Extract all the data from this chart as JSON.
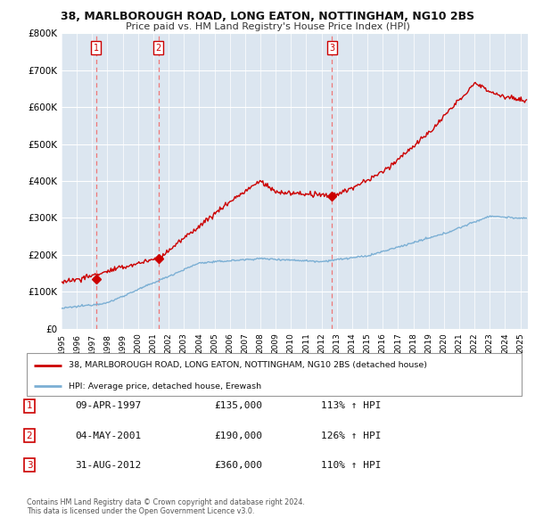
{
  "title": "38, MARLBOROUGH ROAD, LONG EATON, NOTTINGHAM, NG10 2BS",
  "subtitle": "Price paid vs. HM Land Registry's House Price Index (HPI)",
  "legend_line1": "38, MARLBOROUGH ROAD, LONG EATON, NOTTINGHAM, NG10 2BS (detached house)",
  "legend_line2": "HPI: Average price, detached house, Erewash",
  "footer1": "Contains HM Land Registry data © Crown copyright and database right 2024.",
  "footer2": "This data is licensed under the Open Government Licence v3.0.",
  "sales": [
    {
      "label": "1",
      "date": "09-APR-1997",
      "price": 135000,
      "year": 1997.27
    },
    {
      "label": "2",
      "date": "04-MAY-2001",
      "price": 190000,
      "year": 2001.34
    },
    {
      "label": "3",
      "date": "31-AUG-2012",
      "price": 360000,
      "year": 2012.67
    }
  ],
  "sale_table": [
    {
      "num": "1",
      "date": "09-APR-1997",
      "price": "£135,000",
      "pct": "113% ↑ HPI"
    },
    {
      "num": "2",
      "date": "04-MAY-2001",
      "price": "£190,000",
      "pct": "126% ↑ HPI"
    },
    {
      "num": "3",
      "date": "31-AUG-2012",
      "price": "£360,000",
      "pct": "110% ↑ HPI"
    }
  ],
  "hpi_color": "#7bafd4",
  "price_color": "#cc0000",
  "dashed_color": "#ee7777",
  "background_plot": "#dce6f0",
  "background_fig": "#ffffff",
  "ylim": [
    0,
    800000
  ],
  "xlim_start": 1995,
  "xlim_end": 2025.5
}
